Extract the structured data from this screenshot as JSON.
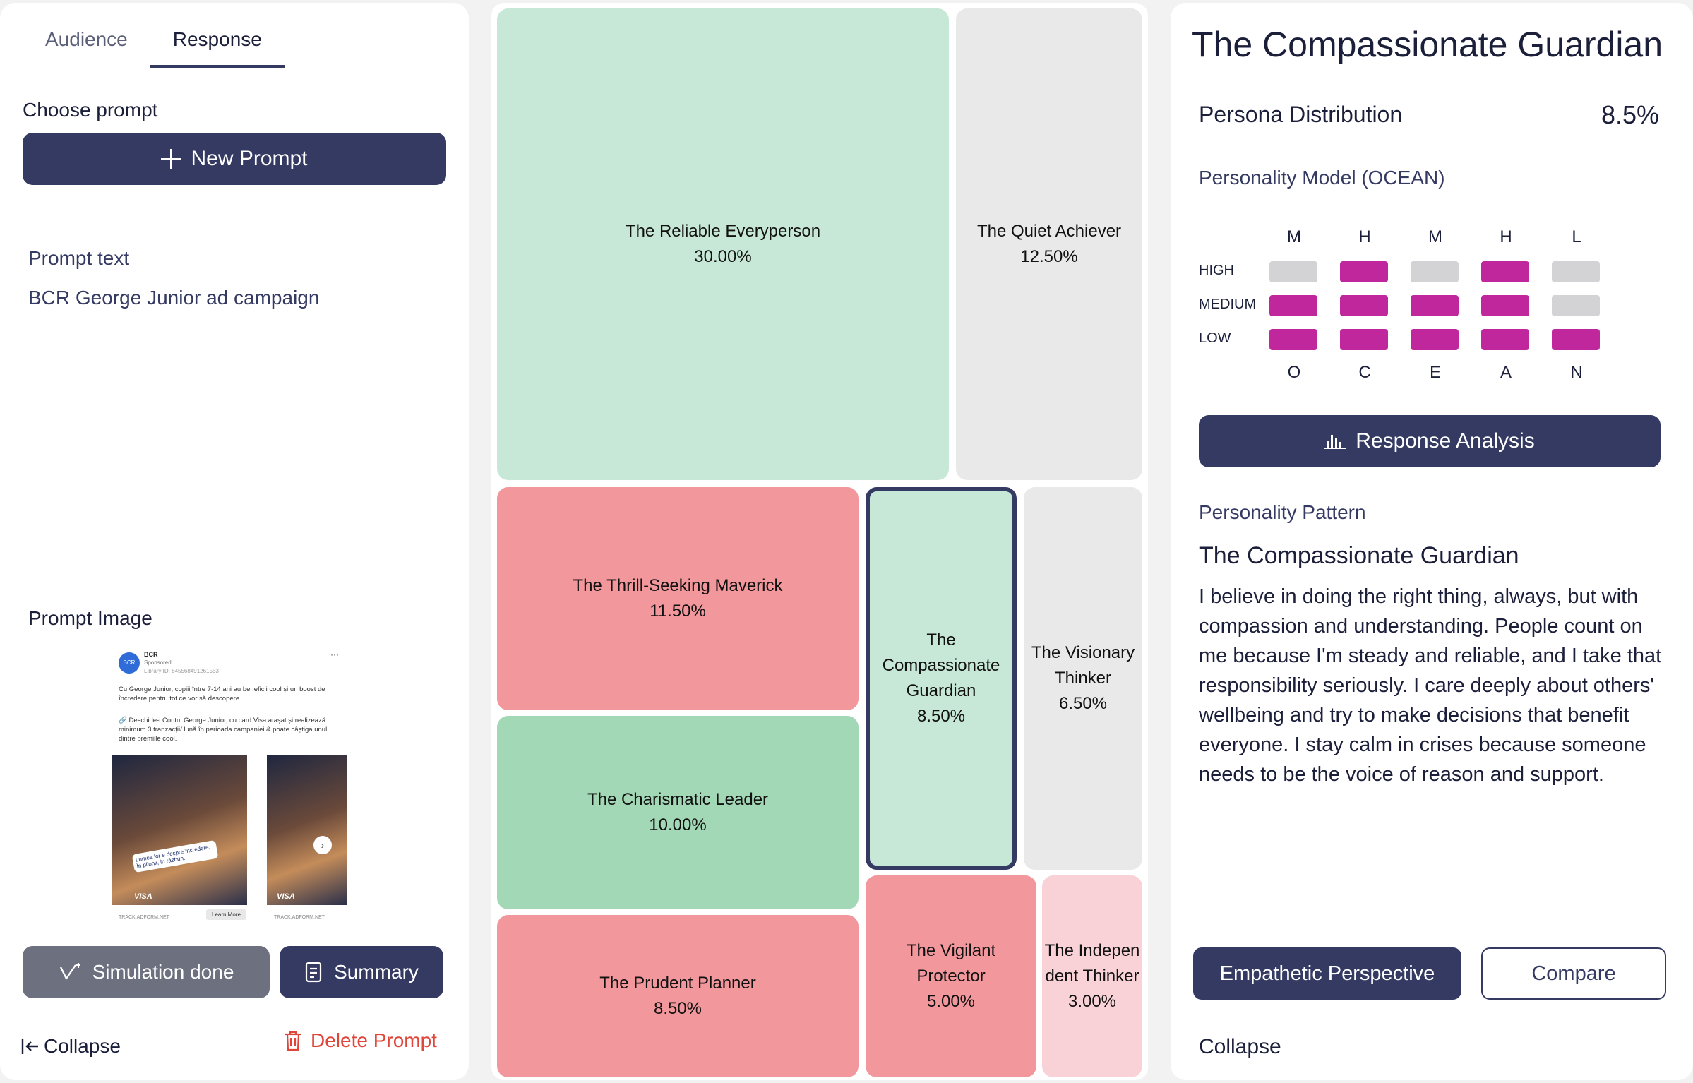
{
  "left": {
    "tabs": [
      {
        "label": "Audience",
        "active": false
      },
      {
        "label": "Response",
        "active": true
      }
    ],
    "choose_prompt_label": "Choose prompt",
    "new_prompt_label": "New Prompt",
    "prompt_text_label": "Prompt text",
    "prompt_text_value": "BCR George Junior ad campaign",
    "prompt_image_label": "Prompt Image",
    "ad": {
      "avatar": "BCR",
      "brand": "BCR",
      "sponsored": "Sponsored",
      "library": "Library ID: 845568491261553",
      "body1": "Cu George Junior, copiii între 7-14 ani au beneficii cool și un boost de încredere pentru tot ce vor să descopere.",
      "body2": "🔗 Deschide-i Contul George Junior, cu card Visa atașat și realizează minimum 3 tranzacții/ lună în perioada campaniei & poate câștiga unul dintre premiile cool.",
      "card_label": "Lumea lor e despre încredere. În pilonii, în răzbun.",
      "visa": "VISA",
      "footer_url": "TRACK.ADFORM.NET",
      "learn_more": "Learn More"
    },
    "simulation_done_label": "Simulation done",
    "summary_label": "Summary",
    "collapse_label": "Collapse",
    "delete_prompt_label": "Delete Prompt"
  },
  "treemap": {
    "tiles": [
      {
        "name": "The Reliable Everyperson",
        "pct": "30.00%",
        "color": "#c7e8d6"
      },
      {
        "name": "The Quiet Achiever",
        "pct": "12.50%",
        "color": "#e9e9ea"
      },
      {
        "name": "The Thrill-Seeking Maverick",
        "pct": "11.50%",
        "color": "#f2979c"
      },
      {
        "name": "The Compassionate Guardian",
        "pct": "8.50%",
        "color": "#c7e8d6",
        "selected": true
      },
      {
        "name": "The Visionary Thinker",
        "pct": "6.50%",
        "color": "#e9e9ea"
      },
      {
        "name": "The Charismatic Leader",
        "pct": "10.00%",
        "color": "#a2d8b6"
      },
      {
        "name": "The Vigilant Protector",
        "pct": "5.00%",
        "color": "#f2979c"
      },
      {
        "name": "The Independent Thinker",
        "pct": "3.00%",
        "color": "#f8d2d6"
      },
      {
        "name": "The Prudent Planner",
        "pct": "8.50%",
        "color": "#f2979c"
      }
    ]
  },
  "right": {
    "title": "The Compassionate Guardian",
    "distribution_label": "Persona Distribution",
    "distribution_value": "8.5%",
    "ocean_label": "Personality Model (OCEAN)",
    "ocean": {
      "levels": [
        "HIGH",
        "MEDIUM",
        "LOW"
      ],
      "traits": [
        {
          "letter": "O",
          "level": "M"
        },
        {
          "letter": "C",
          "level": "H"
        },
        {
          "letter": "E",
          "level": "M"
        },
        {
          "letter": "A",
          "level": "H"
        },
        {
          "letter": "N",
          "level": "L"
        }
      ],
      "active_color": "#c0279c",
      "inactive_color": "#d3d3d5"
    },
    "response_analysis_label": "Response Analysis",
    "pattern_label": "Personality Pattern",
    "pattern_name": "The Compassionate Guardian",
    "pattern_description": "I believe in doing the right thing, always, but with compassion and understanding. People count on me because I'm steady and reliable, and I take that responsibility seriously. I care deeply about others' wellbeing and try to make decisions that benefit everyone. I stay calm in crises because someone needs to be the voice of reason and support.",
    "empathetic_label": "Empathetic Perspective",
    "compare_label": "Compare",
    "collapse_label": "Collapse"
  }
}
